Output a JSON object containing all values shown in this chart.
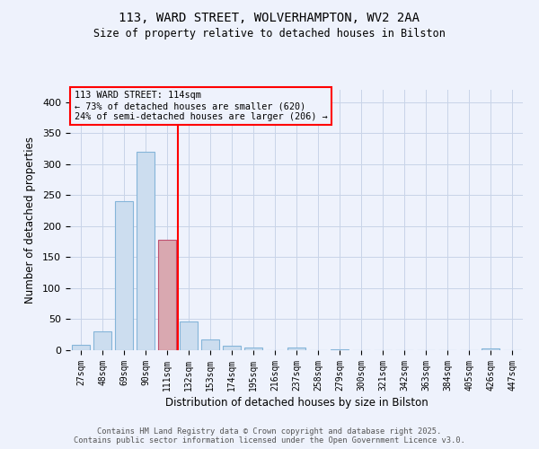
{
  "title1": "113, WARD STREET, WOLVERHAMPTON, WV2 2AA",
  "title2": "Size of property relative to detached houses in Bilston",
  "xlabel": "Distribution of detached houses by size in Bilston",
  "ylabel": "Number of detached properties",
  "categories": [
    "27sqm",
    "48sqm",
    "69sqm",
    "90sqm",
    "111sqm",
    "132sqm",
    "153sqm",
    "174sqm",
    "195sqm",
    "216sqm",
    "237sqm",
    "258sqm",
    "279sqm",
    "300sqm",
    "321sqm",
    "342sqm",
    "363sqm",
    "384sqm",
    "405sqm",
    "426sqm",
    "447sqm"
  ],
  "values": [
    8,
    31,
    240,
    320,
    178,
    46,
    17,
    7,
    4,
    0,
    4,
    0,
    2,
    0,
    0,
    0,
    0,
    0,
    0,
    3,
    0
  ],
  "bar_color": "#ccddef",
  "bar_edge_color": "#85b5d9",
  "highlight_bar_color": "#d9a8b0",
  "highlight_bar_edge_color": "#c05070",
  "highlight_index": 4,
  "red_line_x": 4.5,
  "annotation_title": "113 WARD STREET: 114sqm",
  "annotation_line1": "← 73% of detached houses are smaller (620)",
  "annotation_line2": "24% of semi-detached houses are larger (206) →",
  "footer1": "Contains HM Land Registry data © Crown copyright and database right 2025.",
  "footer2": "Contains public sector information licensed under the Open Government Licence v3.0.",
  "ylim_max": 420,
  "yticks": [
    0,
    50,
    100,
    150,
    200,
    250,
    300,
    350,
    400
  ],
  "bg_color": "#eef2fc",
  "grid_color": "#c8d4e8"
}
